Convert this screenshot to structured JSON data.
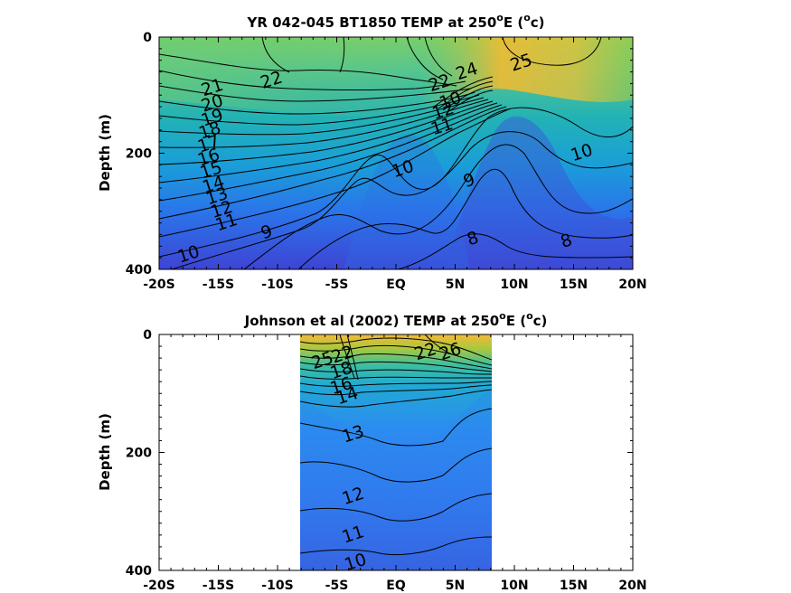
{
  "chart_data": [
    {
      "type": "heatmap",
      "title_prefix": "YR 042-045 BT1850 TEMP at 250",
      "title_deg": "o",
      "title_mid": "E (",
      "title_unit_deg": "o",
      "title_suffix": "c)",
      "ylabel": "Depth (m)",
      "xlabel": "",
      "xlim": [
        -20,
        20
      ],
      "ylim": [
        0,
        400
      ],
      "y_reversed": true,
      "xticks": [
        "-20S",
        "-15S",
        "-10S",
        "-5S",
        "EQ",
        "5N",
        "10N",
        "15N",
        "20N"
      ],
      "yticks": [
        "0",
        "200",
        "400"
      ],
      "contour_labels": [
        {
          "text": "22",
          "lat": -10.5,
          "depth": 75
        },
        {
          "text": "21",
          "lat": -15.5,
          "depth": 88
        },
        {
          "text": "20",
          "lat": -15.5,
          "depth": 115
        },
        {
          "text": "19",
          "lat": -15.5,
          "depth": 140
        },
        {
          "text": "18",
          "lat": -15.7,
          "depth": 162
        },
        {
          "text": "17",
          "lat": -15.8,
          "depth": 185
        },
        {
          "text": "16",
          "lat": -15.8,
          "depth": 208
        },
        {
          "text": "15",
          "lat": -15.6,
          "depth": 230
        },
        {
          "text": "14",
          "lat": -15.4,
          "depth": 255
        },
        {
          "text": "13",
          "lat": -15.1,
          "depth": 275
        },
        {
          "text": "12",
          "lat": -14.7,
          "depth": 298
        },
        {
          "text": "11",
          "lat": -14.3,
          "depth": 320
        },
        {
          "text": "10",
          "lat": -17.5,
          "depth": 375
        },
        {
          "text": "9",
          "lat": -10.9,
          "depth": 337
        },
        {
          "text": "10",
          "lat": 0.6,
          "depth": 228
        },
        {
          "text": "9",
          "lat": 6.2,
          "depth": 248
        },
        {
          "text": "8",
          "lat": 6.5,
          "depth": 348
        },
        {
          "text": "8",
          "lat": 14.4,
          "depth": 352
        },
        {
          "text": "10",
          "lat": 15.7,
          "depth": 200
        },
        {
          "text": "11",
          "lat": 3.9,
          "depth": 155
        },
        {
          "text": "12",
          "lat": 4.0,
          "depth": 128
        },
        {
          "text": "22",
          "lat": 3.7,
          "depth": 80
        },
        {
          "text": "24",
          "lat": 6.0,
          "depth": 60
        },
        {
          "text": "25",
          "lat": 10.6,
          "depth": 45
        },
        {
          "text": "10",
          "lat": 4.6,
          "depth": 110
        }
      ]
    },
    {
      "type": "heatmap",
      "title_prefix": "Johnson et al (2002) TEMP at 250",
      "title_deg": "o",
      "title_mid": "E (",
      "title_unit_deg": "o",
      "title_suffix": "c)",
      "ylabel": "Depth (m)",
      "xlabel": "",
      "xlim": [
        -20,
        20
      ],
      "ylim": [
        0,
        400
      ],
      "y_reversed": true,
      "data_lat_range": [
        -8,
        8.2
      ],
      "xticks": [
        "-20S",
        "-15S",
        "-10S",
        "-5S",
        "EQ",
        "5N",
        "10N",
        "15N",
        "20N"
      ],
      "yticks": [
        "0",
        "200",
        "400"
      ],
      "contour_labels": [
        {
          "text": "25",
          "lat": -6.2,
          "depth": 45
        },
        {
          "text": "22",
          "lat": -4.5,
          "depth": 35
        },
        {
          "text": "18",
          "lat": -4.6,
          "depth": 62
        },
        {
          "text": "16",
          "lat": -4.6,
          "depth": 88
        },
        {
          "text": "14",
          "lat": -4.1,
          "depth": 105
        },
        {
          "text": "13",
          "lat": -3.6,
          "depth": 170
        },
        {
          "text": "12",
          "lat": -3.6,
          "depth": 275
        },
        {
          "text": "11",
          "lat": -3.6,
          "depth": 340
        },
        {
          "text": "10",
          "lat": -3.4,
          "depth": 387
        },
        {
          "text": "22",
          "lat": 2.5,
          "depth": 30
        },
        {
          "text": "26",
          "lat": 4.6,
          "depth": 30
        }
      ]
    }
  ]
}
